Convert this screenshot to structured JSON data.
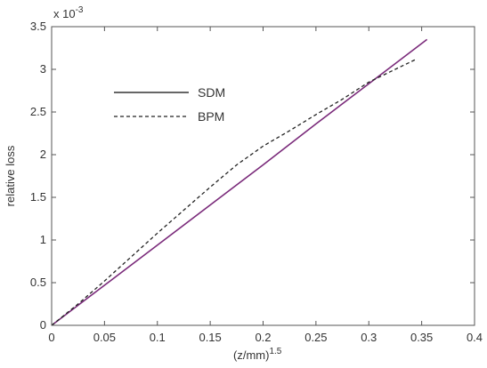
{
  "chart_data": {
    "type": "line",
    "title": "",
    "xlabel": "(z/mm)",
    "xlabel_exponent": "1.5",
    "ylabel": "relative loss",
    "y_multiplier": "x 10",
    "y_multiplier_exponent": "-3",
    "xlim": [
      0,
      0.4
    ],
    "ylim": [
      0,
      3.5
    ],
    "x_ticks": [
      0,
      0.05,
      0.1,
      0.15,
      0.2,
      0.25,
      0.3,
      0.35,
      0.4
    ],
    "x_tick_labels": [
      "0",
      "0.05",
      "0.1",
      "0.15",
      "0.2",
      "0.25",
      "0.3",
      "0.35",
      "0.4"
    ],
    "y_ticks": [
      0,
      0.5,
      1,
      1.5,
      2,
      2.5,
      3,
      3.5
    ],
    "y_tick_labels": [
      "0",
      "0.5",
      "1",
      "1.5",
      "2",
      "2.5",
      "3",
      "3.5"
    ],
    "grid": false,
    "legend_position": "upper-left",
    "series": [
      {
        "name": "SDM",
        "style": "solid",
        "legend_color": "#666666",
        "color": "#7a2a7a",
        "x": [
          0,
          0.05,
          0.1,
          0.15,
          0.2,
          0.25,
          0.3,
          0.355
        ],
        "y": [
          0,
          0.47,
          0.94,
          1.41,
          1.88,
          2.36,
          2.83,
          3.35
        ]
      },
      {
        "name": "BPM",
        "style": "dashed",
        "color": "#222222",
        "x": [
          0,
          0.025,
          0.05,
          0.075,
          0.1,
          0.125,
          0.15,
          0.175,
          0.2,
          0.225,
          0.25,
          0.275,
          0.3,
          0.325,
          0.345
        ],
        "y": [
          0,
          0.25,
          0.52,
          0.8,
          1.08,
          1.35,
          1.62,
          1.88,
          2.1,
          2.28,
          2.47,
          2.65,
          2.85,
          3.0,
          3.12
        ]
      }
    ]
  }
}
